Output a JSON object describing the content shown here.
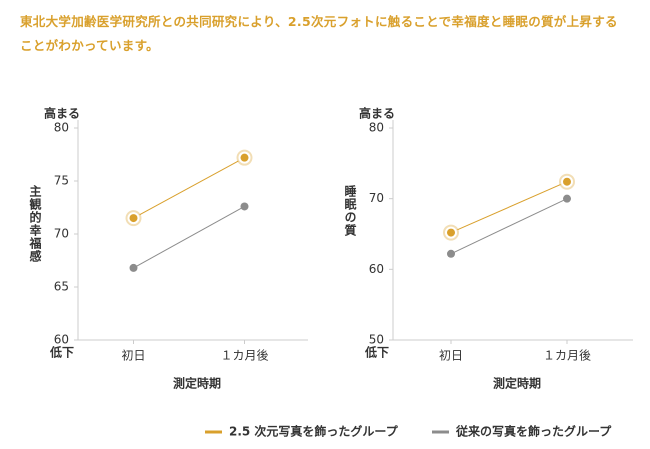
{
  "headline": "東北大学加齢医学研究所との共同研究により、2.5次元フォトに触ることで幸福度と睡眠の質が上昇することがわかっています。",
  "chart_data": [
    {
      "type": "line",
      "y_label": "主観的幸福感",
      "x_label": "測定時期",
      "top_note": "高まる",
      "bottom_note": "低下",
      "categories": [
        "初日",
        "１カ月後"
      ],
      "series": [
        {
          "name": "2.5 次元写真を飾ったグループ",
          "color": "#d9a02c",
          "values": [
            71.5,
            77.2
          ]
        },
        {
          "name": "従来の写真を飾ったグループ",
          "color": "#8c8c8c",
          "values": [
            66.8,
            72.6
          ]
        }
      ],
      "ylim": [
        60,
        80
      ],
      "yticks": [
        60,
        65,
        70,
        75,
        80
      ]
    },
    {
      "type": "line",
      "y_label": "睡眠の質",
      "x_label": "測定時期",
      "top_note": "高まる",
      "bottom_note": "低下",
      "categories": [
        "初日",
        "１カ月後"
      ],
      "series": [
        {
          "color": "#d9a02c",
          "values": [
            65.2,
            72.4
          ]
        },
        {
          "color": "#8c8c8c",
          "values": [
            62.2,
            70.0
          ]
        }
      ],
      "ylim": [
        50,
        80
      ],
      "yticks": [
        50,
        60,
        70,
        80
      ]
    }
  ]
}
